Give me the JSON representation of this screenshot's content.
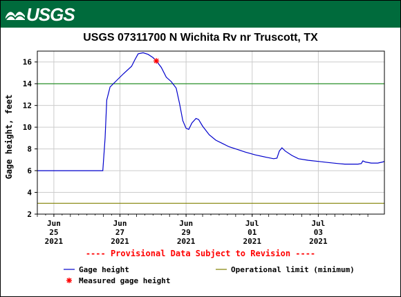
{
  "header": {
    "logo_text": "USGS",
    "banner_color": "#006b3c"
  },
  "chart_data": {
    "type": "line",
    "title": "USGS 07311700 N Wichita Rv nr Truscott, TX",
    "ylabel": "Gage height, feet",
    "xlabel": "",
    "ylim": [
      2,
      17
    ],
    "yticks": [
      2,
      4,
      6,
      8,
      10,
      12,
      14,
      16
    ],
    "xlim": [
      0,
      10
    ],
    "xticks": [
      {
        "x": 0.5,
        "label": [
          "Jun",
          "25",
          "2021"
        ]
      },
      {
        "x": 2.5,
        "label": [
          "Jun",
          "27",
          "2021"
        ]
      },
      {
        "x": 4.5,
        "label": [
          "Jun",
          "29",
          "2021"
        ]
      },
      {
        "x": 6.5,
        "label": [
          "Jul",
          "01",
          "2021"
        ]
      },
      {
        "x": 8.5,
        "label": [
          "Jul",
          "03",
          "2021"
        ]
      }
    ],
    "grid": true,
    "notice": "---- Provisional Data Subject to Revision ----",
    "series": [
      {
        "name": "Gage height",
        "color": "#0000cc",
        "points": [
          [
            0.0,
            6.0
          ],
          [
            0.5,
            6.0
          ],
          [
            1.0,
            6.0
          ],
          [
            1.5,
            6.0
          ],
          [
            1.98,
            6.0
          ],
          [
            2.05,
            9.0
          ],
          [
            2.1,
            12.5
          ],
          [
            2.2,
            13.7
          ],
          [
            2.4,
            14.3
          ],
          [
            2.6,
            14.9
          ],
          [
            2.85,
            15.6
          ],
          [
            2.95,
            16.2
          ],
          [
            3.05,
            16.75
          ],
          [
            3.2,
            16.85
          ],
          [
            3.35,
            16.7
          ],
          [
            3.5,
            16.4
          ],
          [
            3.6,
            16.1
          ],
          [
            3.75,
            15.5
          ],
          [
            3.9,
            14.6
          ],
          [
            4.05,
            14.2
          ],
          [
            4.2,
            13.6
          ],
          [
            4.3,
            12.2
          ],
          [
            4.4,
            10.6
          ],
          [
            4.5,
            9.9
          ],
          [
            4.58,
            9.8
          ],
          [
            4.68,
            10.4
          ],
          [
            4.8,
            10.8
          ],
          [
            4.88,
            10.7
          ],
          [
            5.0,
            10.1
          ],
          [
            5.2,
            9.3
          ],
          [
            5.4,
            8.8
          ],
          [
            5.6,
            8.5
          ],
          [
            5.8,
            8.2
          ],
          [
            6.0,
            8.0
          ],
          [
            6.3,
            7.7
          ],
          [
            6.6,
            7.45
          ],
          [
            6.9,
            7.25
          ],
          [
            7.15,
            7.1
          ],
          [
            7.25,
            7.15
          ],
          [
            7.32,
            7.8
          ],
          [
            7.4,
            8.1
          ],
          [
            7.5,
            7.8
          ],
          [
            7.7,
            7.4
          ],
          [
            7.9,
            7.1
          ],
          [
            8.2,
            6.95
          ],
          [
            8.5,
            6.85
          ],
          [
            8.8,
            6.75
          ],
          [
            9.1,
            6.65
          ],
          [
            9.3,
            6.6
          ],
          [
            9.5,
            6.6
          ],
          [
            9.7,
            6.6
          ],
          [
            9.8,
            6.65
          ],
          [
            9.85,
            6.9
          ],
          [
            9.92,
            6.8
          ],
          [
            10.1,
            6.7
          ],
          [
            10.3,
            6.7
          ],
          [
            10.45,
            6.8
          ],
          [
            10.5,
            6.85
          ]
        ]
      },
      {
        "name": "Operational limit (minimum)",
        "color": "#808000",
        "points": [
          [
            0.0,
            3.0
          ],
          [
            10.5,
            3.0
          ]
        ]
      }
    ],
    "hlines": [
      {
        "y": 14,
        "color": "#008000"
      }
    ],
    "markers": [
      {
        "name": "Measured gage height",
        "x": 3.6,
        "y": 16.1,
        "color": "#ff0000"
      }
    ],
    "legend": {
      "placement": "bottom",
      "items": [
        {
          "label": "Gage height",
          "kind": "line",
          "color": "#0000cc"
        },
        {
          "label": "Operational limit (minimum)",
          "kind": "line",
          "color": "#808000"
        },
        {
          "label": "Measured gage height",
          "kind": "star",
          "color": "#ff0000"
        }
      ]
    }
  }
}
